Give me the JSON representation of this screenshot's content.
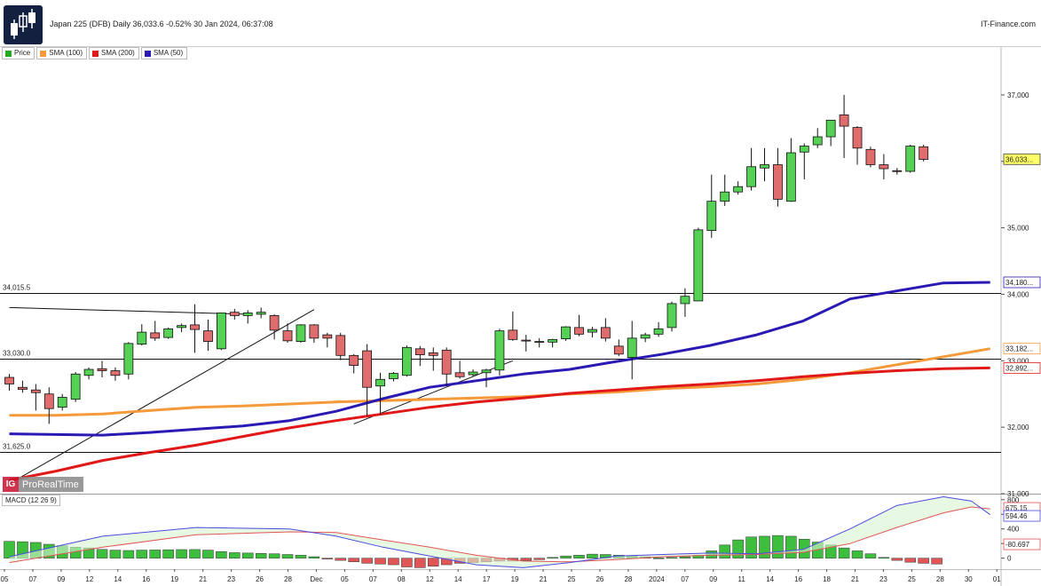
{
  "header": {
    "title": "Japan 225 (DFB) Daily 36,033.6 -0.52% 30 Jan 2024, 06:37:08",
    "brand": "IT-Finance.com"
  },
  "icons": {
    "logo": "candlestick-logo-icon"
  },
  "legend": [
    {
      "label": "Price",
      "color": "#22aa22"
    },
    {
      "label": "SMA (100)",
      "color": "#f59a3a"
    },
    {
      "label": "SMA (200)",
      "color": "#e01818"
    },
    {
      "label": "SMA (50)",
      "color": "#2a1ab4"
    }
  ],
  "watermark": {
    "icon": "IG",
    "text": "ProRealTime"
  },
  "macd_label": "MACD (12 26 9)",
  "colors": {
    "up": "#55d155",
    "down": "#e06d6d",
    "sma50": "#2a1ab4",
    "sma100": "#f59a3a",
    "sma200": "#e01818",
    "macd": "#4a4ae0",
    "signal": "#e05555",
    "hist_pos": "#3dbf3d",
    "hist_neg": "#e05555"
  },
  "chart_data": [
    {
      "type": "candlestick",
      "title": "Japan 225 (DFB) Daily",
      "price_axis": {
        "ticks": [
          31000,
          32000,
          33000,
          34000,
          35000,
          36000,
          37000
        ],
        "labels": [
          "31,000",
          "32,000",
          "33,000",
          "34,000",
          "35,000",
          "36,000",
          "37,000"
        ],
        "range": [
          31000,
          37600
        ]
      },
      "x_labels": [
        "05",
        "07",
        "09",
        "12",
        "14",
        "16",
        "19",
        "21",
        "23",
        "26",
        "28",
        "Dec",
        "05",
        "07",
        "08",
        "12",
        "14",
        "17",
        "19",
        "21",
        "25",
        "26",
        "28",
        "2024",
        "07",
        "09",
        "11",
        "14",
        "16",
        "18",
        "21",
        "23",
        "25",
        "28",
        "30",
        "01"
      ],
      "candles": [
        {
          "o": 32750,
          "h": 32800,
          "c": 32650,
          "l": 32550
        },
        {
          "o": 32600,
          "h": 32700,
          "c": 32570,
          "l": 32520
        },
        {
          "o": 32560,
          "h": 32650,
          "c": 32520,
          "l": 32250
        },
        {
          "o": 32500,
          "h": 32600,
          "c": 32280,
          "l": 32050
        },
        {
          "o": 32300,
          "h": 32500,
          "c": 32450,
          "l": 32250
        },
        {
          "o": 32420,
          "h": 32830,
          "c": 32800,
          "l": 32380
        },
        {
          "o": 32780,
          "h": 32900,
          "c": 32870,
          "l": 32720
        },
        {
          "o": 32880,
          "h": 33000,
          "c": 32850,
          "l": 32750
        },
        {
          "o": 32850,
          "h": 32900,
          "c": 32780,
          "l": 32700
        },
        {
          "o": 32800,
          "h": 33280,
          "c": 33260,
          "l": 32720
        },
        {
          "o": 33250,
          "h": 33550,
          "c": 33430,
          "l": 33230
        },
        {
          "o": 33420,
          "h": 33600,
          "c": 33340,
          "l": 33300
        },
        {
          "o": 33350,
          "h": 33500,
          "c": 33480,
          "l": 33330
        },
        {
          "o": 33500,
          "h": 33560,
          "c": 33530,
          "l": 33430
        },
        {
          "o": 33540,
          "h": 33850,
          "c": 33470,
          "l": 33120
        },
        {
          "o": 33450,
          "h": 33620,
          "c": 33290,
          "l": 33150
        },
        {
          "o": 33180,
          "h": 33720,
          "c": 33720,
          "l": 33160
        },
        {
          "o": 33730,
          "h": 33780,
          "c": 33680,
          "l": 33620
        },
        {
          "o": 33680,
          "h": 33760,
          "c": 33720,
          "l": 33560
        },
        {
          "o": 33700,
          "h": 33800,
          "c": 33730,
          "l": 33640
        },
        {
          "o": 33680,
          "h": 33700,
          "c": 33460,
          "l": 33320
        },
        {
          "o": 33450,
          "h": 33560,
          "c": 33300,
          "l": 33270
        },
        {
          "o": 33290,
          "h": 33550,
          "c": 33540,
          "l": 33270
        },
        {
          "o": 33540,
          "h": 33550,
          "c": 33340,
          "l": 33270
        },
        {
          "o": 33390,
          "h": 33420,
          "c": 33340,
          "l": 33200
        },
        {
          "o": 33380,
          "h": 33420,
          "c": 33080,
          "l": 33010
        },
        {
          "o": 33080,
          "h": 33100,
          "c": 32930,
          "l": 32810
        },
        {
          "o": 33150,
          "h": 33250,
          "c": 32600,
          "l": 32170
        },
        {
          "o": 32620,
          "h": 32820,
          "c": 32720,
          "l": 32190
        },
        {
          "o": 32730,
          "h": 32830,
          "c": 32810,
          "l": 32690
        },
        {
          "o": 32780,
          "h": 33230,
          "c": 33200,
          "l": 32760
        },
        {
          "o": 33180,
          "h": 33220,
          "c": 33090,
          "l": 32920
        },
        {
          "o": 33120,
          "h": 33200,
          "c": 33080,
          "l": 32850
        },
        {
          "o": 33160,
          "h": 33200,
          "c": 32800,
          "l": 32620
        },
        {
          "o": 32820,
          "h": 33000,
          "c": 32760,
          "l": 32730
        },
        {
          "o": 32790,
          "h": 32870,
          "c": 32830,
          "l": 32770
        },
        {
          "o": 32820,
          "h": 32880,
          "c": 32860,
          "l": 32600
        },
        {
          "o": 32860,
          "h": 33480,
          "c": 33450,
          "l": 32780
        },
        {
          "o": 33460,
          "h": 33740,
          "c": 33320,
          "l": 33300
        },
        {
          "o": 33310,
          "h": 33390,
          "c": 33300,
          "l": 33140
        },
        {
          "o": 33290,
          "h": 33340,
          "c": 33290,
          "l": 33200
        },
        {
          "o": 33280,
          "h": 33330,
          "c": 33320,
          "l": 33200
        },
        {
          "o": 33330,
          "h": 33520,
          "c": 33510,
          "l": 33300
        },
        {
          "o": 33500,
          "h": 33690,
          "c": 33400,
          "l": 33370
        },
        {
          "o": 33430,
          "h": 33510,
          "c": 33470,
          "l": 33350
        },
        {
          "o": 33500,
          "h": 33640,
          "c": 33340,
          "l": 33290
        },
        {
          "o": 33220,
          "h": 33320,
          "c": 33100,
          "l": 33070
        },
        {
          "o": 33050,
          "h": 33600,
          "c": 33340,
          "l": 32720
        },
        {
          "o": 33340,
          "h": 33420,
          "c": 33390,
          "l": 33280
        },
        {
          "o": 33400,
          "h": 33580,
          "c": 33480,
          "l": 33360
        },
        {
          "o": 33500,
          "h": 33890,
          "c": 33860,
          "l": 33440
        },
        {
          "o": 33860,
          "h": 34090,
          "c": 33970,
          "l": 33660
        },
        {
          "o": 33900,
          "h": 35000,
          "c": 34970,
          "l": 33900
        },
        {
          "o": 34960,
          "h": 35800,
          "c": 35400,
          "l": 34850
        },
        {
          "o": 35400,
          "h": 35800,
          "c": 35540,
          "l": 35330
        },
        {
          "o": 35540,
          "h": 35700,
          "c": 35620,
          "l": 35500
        },
        {
          "o": 35620,
          "h": 36200,
          "c": 35920,
          "l": 35560
        },
        {
          "o": 35900,
          "h": 36200,
          "c": 35950,
          "l": 35700
        },
        {
          "o": 35950,
          "h": 36200,
          "c": 35430,
          "l": 35320
        },
        {
          "o": 35400,
          "h": 36350,
          "c": 36130,
          "l": 35390
        },
        {
          "o": 36140,
          "h": 36270,
          "c": 36230,
          "l": 35730
        },
        {
          "o": 36250,
          "h": 36500,
          "c": 36370,
          "l": 36200
        },
        {
          "o": 36370,
          "h": 36600,
          "c": 36620,
          "l": 36230
        },
        {
          "o": 36700,
          "h": 37000,
          "c": 36530,
          "l": 36050
        },
        {
          "o": 36510,
          "h": 36530,
          "c": 36200,
          "l": 35950
        },
        {
          "o": 36180,
          "h": 36220,
          "c": 35950,
          "l": 35910
        },
        {
          "o": 35950,
          "h": 36110,
          "c": 35890,
          "l": 35730
        },
        {
          "o": 35860,
          "h": 35900,
          "c": 35850,
          "l": 35800
        },
        {
          "o": 35850,
          "h": 36250,
          "c": 36230,
          "l": 35830
        },
        {
          "o": 36220,
          "h": 36250,
          "c": 36030,
          "l": 36000
        }
      ],
      "sma50": [
        [
          0,
          31900
        ],
        [
          5,
          31890
        ],
        [
          10,
          31880
        ],
        [
          15,
          31920
        ],
        [
          20,
          31970
        ],
        [
          25,
          32020
        ],
        [
          30,
          32100
        ],
        [
          35,
          32240
        ],
        [
          40,
          32430
        ],
        [
          45,
          32600
        ],
        [
          50,
          32700
        ],
        [
          55,
          32800
        ],
        [
          60,
          32870
        ],
        [
          65,
          32990
        ],
        [
          70,
          33100
        ],
        [
          75,
          33230
        ],
        [
          80,
          33390
        ],
        [
          85,
          33600
        ],
        [
          90,
          33930
        ],
        [
          95,
          34050
        ],
        [
          100,
          34170
        ],
        [
          105,
          34180
        ]
      ],
      "sma100": [
        [
          0,
          32180
        ],
        [
          5,
          32180
        ],
        [
          10,
          32200
        ],
        [
          15,
          32250
        ],
        [
          20,
          32300
        ],
        [
          25,
          32320
        ],
        [
          30,
          32350
        ],
        [
          35,
          32380
        ],
        [
          40,
          32400
        ],
        [
          45,
          32420
        ],
        [
          50,
          32440
        ],
        [
          55,
          32460
        ],
        [
          60,
          32500
        ],
        [
          65,
          32530
        ],
        [
          70,
          32580
        ],
        [
          75,
          32610
        ],
        [
          80,
          32650
        ],
        [
          85,
          32720
        ],
        [
          90,
          32820
        ],
        [
          95,
          32940
        ],
        [
          100,
          33060
        ],
        [
          105,
          33182
        ]
      ],
      "sma200": [
        [
          0,
          31200
        ],
        [
          5,
          31340
        ],
        [
          10,
          31500
        ],
        [
          15,
          31620
        ],
        [
          20,
          31730
        ],
        [
          25,
          31860
        ],
        [
          30,
          31990
        ],
        [
          35,
          32100
        ],
        [
          40,
          32200
        ],
        [
          45,
          32300
        ],
        [
          50,
          32380
        ],
        [
          55,
          32440
        ],
        [
          60,
          32510
        ],
        [
          65,
          32560
        ],
        [
          70,
          32610
        ],
        [
          75,
          32650
        ],
        [
          80,
          32700
        ],
        [
          85,
          32760
        ],
        [
          90,
          32810
        ],
        [
          95,
          32850
        ],
        [
          100,
          32880
        ],
        [
          105,
          32892
        ]
      ],
      "hlines": [
        {
          "value": 34015.5,
          "label": "34,015.5"
        },
        {
          "value": 33030,
          "label": "33,030.0"
        },
        {
          "value": 31625,
          "label": "31,625.0"
        }
      ],
      "trendlines": [
        {
          "from": [
            0,
            31150
          ],
          "to": [
            23,
            33770
          ]
        },
        {
          "from": [
            0,
            33800
          ],
          "to": [
            18,
            33700
          ]
        },
        {
          "from": [
            26,
            32050
          ],
          "to": [
            38,
            33000
          ]
        }
      ],
      "last_values": [
        {
          "label": "36,033...",
          "value": 36033,
          "style": "price"
        },
        {
          "label": "34,180...",
          "value": 34180,
          "style": "sma50"
        },
        {
          "label": "33,182...",
          "value": 33182,
          "style": "sma100"
        },
        {
          "label": "32,892...",
          "value": 32892,
          "style": "sma200"
        }
      ]
    },
    {
      "type": "macd",
      "title": "MACD (12 26 9)",
      "y_ticks": [
        0,
        200,
        400,
        600,
        800
      ],
      "y_labels": [
        "0",
        "200",
        "400",
        "600",
        "800"
      ],
      "range": [
        -150,
        870
      ],
      "hist": [
        230,
        225,
        215,
        190,
        170,
        150,
        140,
        120,
        110,
        105,
        110,
        112,
        115,
        117,
        118,
        110,
        90,
        75,
        70,
        65,
        60,
        50,
        40,
        20,
        -10,
        -30,
        -50,
        -70,
        -80,
        -90,
        -120,
        -130,
        -110,
        -90,
        -70,
        -60,
        -50,
        -40,
        -40,
        -30,
        -20,
        10,
        30,
        40,
        55,
        50,
        40,
        30,
        20,
        5,
        10,
        20,
        40,
        100,
        180,
        250,
        290,
        300,
        310,
        300,
        260,
        220,
        180,
        140,
        100,
        60,
        10,
        -30,
        -55,
        -70,
        -80
      ],
      "macd_series": [
        [
          0,
          20
        ],
        [
          10,
          300
        ],
        [
          20,
          420
        ],
        [
          30,
          400
        ],
        [
          35,
          300
        ],
        [
          40,
          150
        ],
        [
          45,
          30
        ],
        [
          50,
          -90
        ],
        [
          55,
          -130
        ],
        [
          60,
          -60
        ],
        [
          65,
          30
        ],
        [
          70,
          50
        ],
        [
          75,
          70
        ],
        [
          80,
          60
        ],
        [
          85,
          120
        ],
        [
          90,
          400
        ],
        [
          95,
          720
        ],
        [
          100,
          840
        ],
        [
          103,
          780
        ],
        [
          105,
          594
        ]
      ],
      "signal_series": [
        [
          0,
          -60
        ],
        [
          10,
          150
        ],
        [
          20,
          320
        ],
        [
          30,
          360
        ],
        [
          35,
          350
        ],
        [
          40,
          250
        ],
        [
          45,
          150
        ],
        [
          50,
          40
        ],
        [
          55,
          -40
        ],
        [
          60,
          -50
        ],
        [
          65,
          -20
        ],
        [
          70,
          20
        ],
        [
          75,
          40
        ],
        [
          80,
          50
        ],
        [
          85,
          80
        ],
        [
          90,
          200
        ],
        [
          95,
          420
        ],
        [
          100,
          620
        ],
        [
          103,
          700
        ],
        [
          105,
          675
        ]
      ],
      "last_values": [
        {
          "label": "675.15",
          "value": 675.15,
          "style": "signal"
        },
        {
          "label": "594.46",
          "value": 594.46,
          "style": "macd"
        },
        {
          "label": "-80.697",
          "value": -80.697,
          "style": "hist"
        }
      ]
    }
  ]
}
